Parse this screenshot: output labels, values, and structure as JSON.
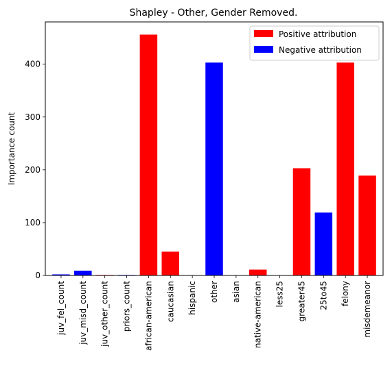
{
  "chart_data": {
    "type": "bar",
    "title": "Shapley - Other, Gender Removed.",
    "xlabel": "",
    "ylabel": "Importance count",
    "ylim": [
      0,
      480
    ],
    "yticks": [
      0,
      100,
      200,
      300,
      400
    ],
    "grid": false,
    "legend_position": "top-right",
    "categories": [
      "juv_fel_count",
      "juv_misd_count",
      "juv_other_count",
      "priors_count",
      "african-american",
      "caucasian",
      "hispanic",
      "other",
      "asian",
      "native-american",
      "less25",
      "greater45",
      "25to45",
      "felony",
      "misdemeanor"
    ],
    "values": [
      2,
      9,
      1,
      1,
      456,
      45,
      0,
      403,
      0,
      11,
      0,
      203,
      119,
      403,
      189
    ],
    "attribution": [
      "negative",
      "negative",
      "positive",
      "negative",
      "positive",
      "positive",
      "positive",
      "negative",
      "positive",
      "positive",
      "positive",
      "positive",
      "negative",
      "positive",
      "positive"
    ],
    "legend": [
      {
        "label": "Positive attribution",
        "key": "positive",
        "color": "#ff0000"
      },
      {
        "label": "Negative attribution",
        "key": "negative",
        "color": "#0000ff"
      }
    ],
    "colors": {
      "positive": "#ff0000",
      "negative": "#0000ff"
    }
  }
}
